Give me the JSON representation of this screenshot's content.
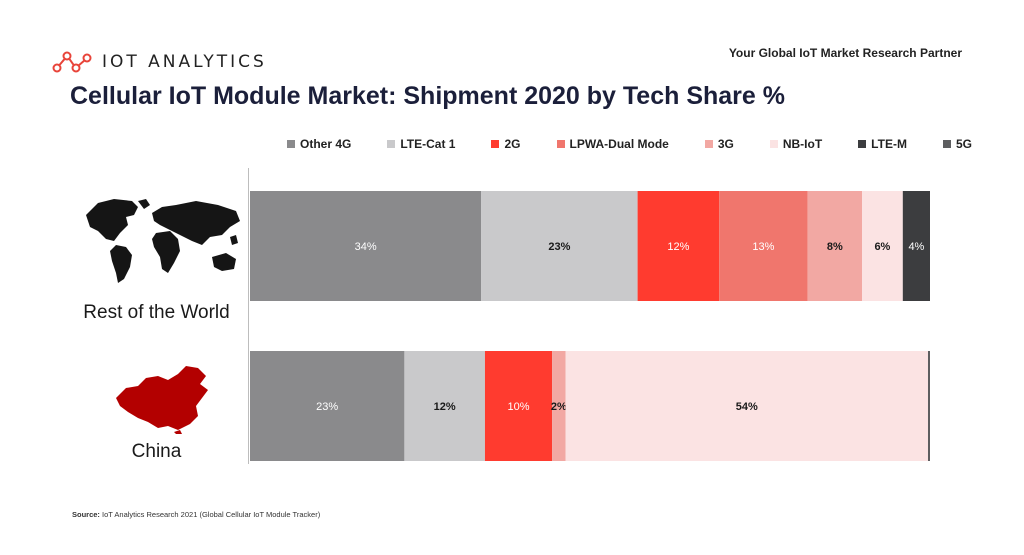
{
  "header": {
    "brand": "IOT ANALYTICS",
    "tagline": "Your Global IoT Market Research Partner"
  },
  "source": {
    "label": "Source:",
    "text": "IoT Analytics Research 2021 (Global Cellular IoT Module Tracker)"
  },
  "colors": {
    "brand_red": "#e8443a",
    "title_navy": "#1b1f3a",
    "china_red": "#b30000",
    "map_dark": "#151515"
  },
  "chart_data": {
    "type": "bar",
    "orientation": "horizontal",
    "stacked": true,
    "title": "Cellular IoT Module Market: Shipment 2020 by Tech Share %",
    "legend_position": "top",
    "categories": [
      "Rest of the World",
      "China"
    ],
    "series": [
      {
        "name": "Other 4G",
        "color": "#8a8a8c",
        "values": [
          34,
          23
        ],
        "labels": [
          "34%",
          "23%"
        ]
      },
      {
        "name": "LTE-Cat 1",
        "color": "#c9c9cb",
        "values": [
          23,
          12
        ],
        "labels": [
          "23%",
          "12%"
        ]
      },
      {
        "name": "2G",
        "color": "#ff3b2f",
        "values": [
          12,
          10
        ],
        "labels": [
          "12%",
          "10%"
        ]
      },
      {
        "name": "LPWA-Dual Mode",
        "color": "#f0766d",
        "values": [
          13,
          0
        ],
        "labels": [
          "13%",
          ""
        ]
      },
      {
        "name": "3G",
        "color": "#f2a8a3",
        "values": [
          8,
          2
        ],
        "labels": [
          "8%",
          "2%"
        ]
      },
      {
        "name": "NB-IoT",
        "color": "#fbe3e3",
        "values": [
          6,
          54
        ],
        "labels": [
          "6%",
          "54%"
        ]
      },
      {
        "name": "LTE-M",
        "color": "#3c3d3f",
        "values": [
          4,
          0
        ],
        "labels": [
          "4%",
          ""
        ]
      },
      {
        "name": "5G",
        "color": "#5d5e60",
        "values": [
          0,
          0.3
        ],
        "labels": [
          "",
          ""
        ]
      }
    ]
  }
}
